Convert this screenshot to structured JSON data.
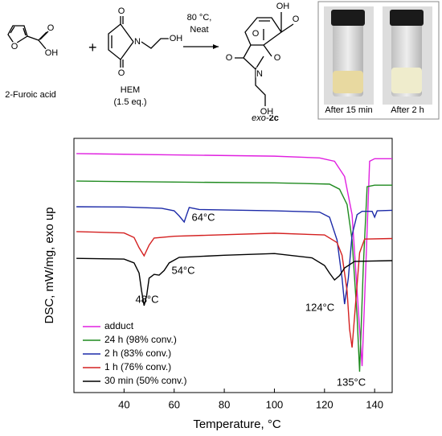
{
  "scheme": {
    "reactant1": "2-Furoic acid",
    "reactant2": "HEM",
    "equivalents": "(1.5 eq.)",
    "conditions": [
      "80 °C,",
      "Neat"
    ],
    "product": {
      "prefix": "exo-",
      "number": "2c"
    },
    "atoms": [
      "O",
      "O",
      "OH",
      "O",
      "O",
      "N",
      "OH",
      "O",
      "O",
      "OH",
      "O",
      "N",
      "O",
      "OH"
    ],
    "photos": [
      "After 15 min",
      "After 2 h"
    ]
  },
  "chart_data": {
    "type": "line",
    "xlabel": "Temperature, °C",
    "ylabel": "DSC, mW/mg, exo up",
    "xlim": [
      20,
      147
    ],
    "ylim": [
      0,
      100
    ],
    "xticks": [
      40,
      60,
      80,
      100,
      120,
      140
    ],
    "legend": "lower left",
    "series": [
      {
        "name": "adduct",
        "color": "#e020e0",
        "x": [
          21,
          60,
          100,
          118,
          124,
          128,
          131,
          133,
          135,
          136.5,
          138,
          140,
          147
        ],
        "values": [
          94,
          93.5,
          93,
          92.3,
          91,
          85,
          70,
          40,
          10.4,
          50,
          91,
          92,
          92
        ]
      },
      {
        "name": "24 h (98% conv.)",
        "color": "#1f8a1f",
        "x": [
          21,
          60,
          100,
          122,
          126,
          129,
          131,
          133,
          134,
          135.5,
          137,
          140,
          147
        ],
        "values": [
          83.2,
          82.8,
          82.5,
          82,
          80,
          74,
          60,
          30,
          8.2,
          50,
          81,
          81.6,
          81.6
        ]
      },
      {
        "name": "2 h (83% conv.)",
        "color": "#1c2aa8",
        "x": [
          21,
          40,
          55,
          60,
          62,
          64,
          65,
          66,
          70,
          100,
          118,
          122,
          125,
          127,
          128,
          129.5,
          131,
          133,
          135,
          139,
          140,
          141,
          147
        ],
        "values": [
          73.1,
          73,
          72.5,
          71.5,
          69.5,
          67.1,
          70,
          72.8,
          72,
          71.5,
          71,
          69,
          60,
          45,
          34.8,
          45,
          62,
          70,
          71.3,
          71.3,
          69,
          71.5,
          71.7
        ]
      },
      {
        "name": "1 h (76% conv.)",
        "color": "#d42020",
        "x": [
          21,
          40,
          44,
          46,
          48,
          50,
          52,
          60,
          100,
          120,
          125,
          127,
          129,
          130,
          131,
          132,
          134,
          136,
          147
        ],
        "values": [
          63.3,
          62.8,
          61,
          57,
          53.8,
          58,
          60.8,
          61.5,
          62.7,
          62,
          59,
          54,
          40,
          25,
          17.7,
          30,
          55,
          60.4,
          60.6
        ]
      },
      {
        "name": "30 min (50% conv.)",
        "color": "#000000",
        "x": [
          21,
          40,
          44,
          46,
          47,
          48,
          49,
          50,
          52,
          54,
          56,
          58,
          62,
          80,
          100,
          115,
          120,
          122,
          124,
          126,
          128,
          132,
          147
        ],
        "values": [
          52.8,
          52.5,
          51,
          47,
          40,
          34.2,
          38,
          45,
          46.5,
          46.2,
          48,
          51,
          53.2,
          54,
          54.7,
          53,
          50,
          47,
          44.3,
          46,
          49,
          51.6,
          51.9
        ]
      }
    ],
    "annotations": [
      "64°C",
      "54°C",
      "48°C",
      "124°C",
      "135°C"
    ]
  }
}
